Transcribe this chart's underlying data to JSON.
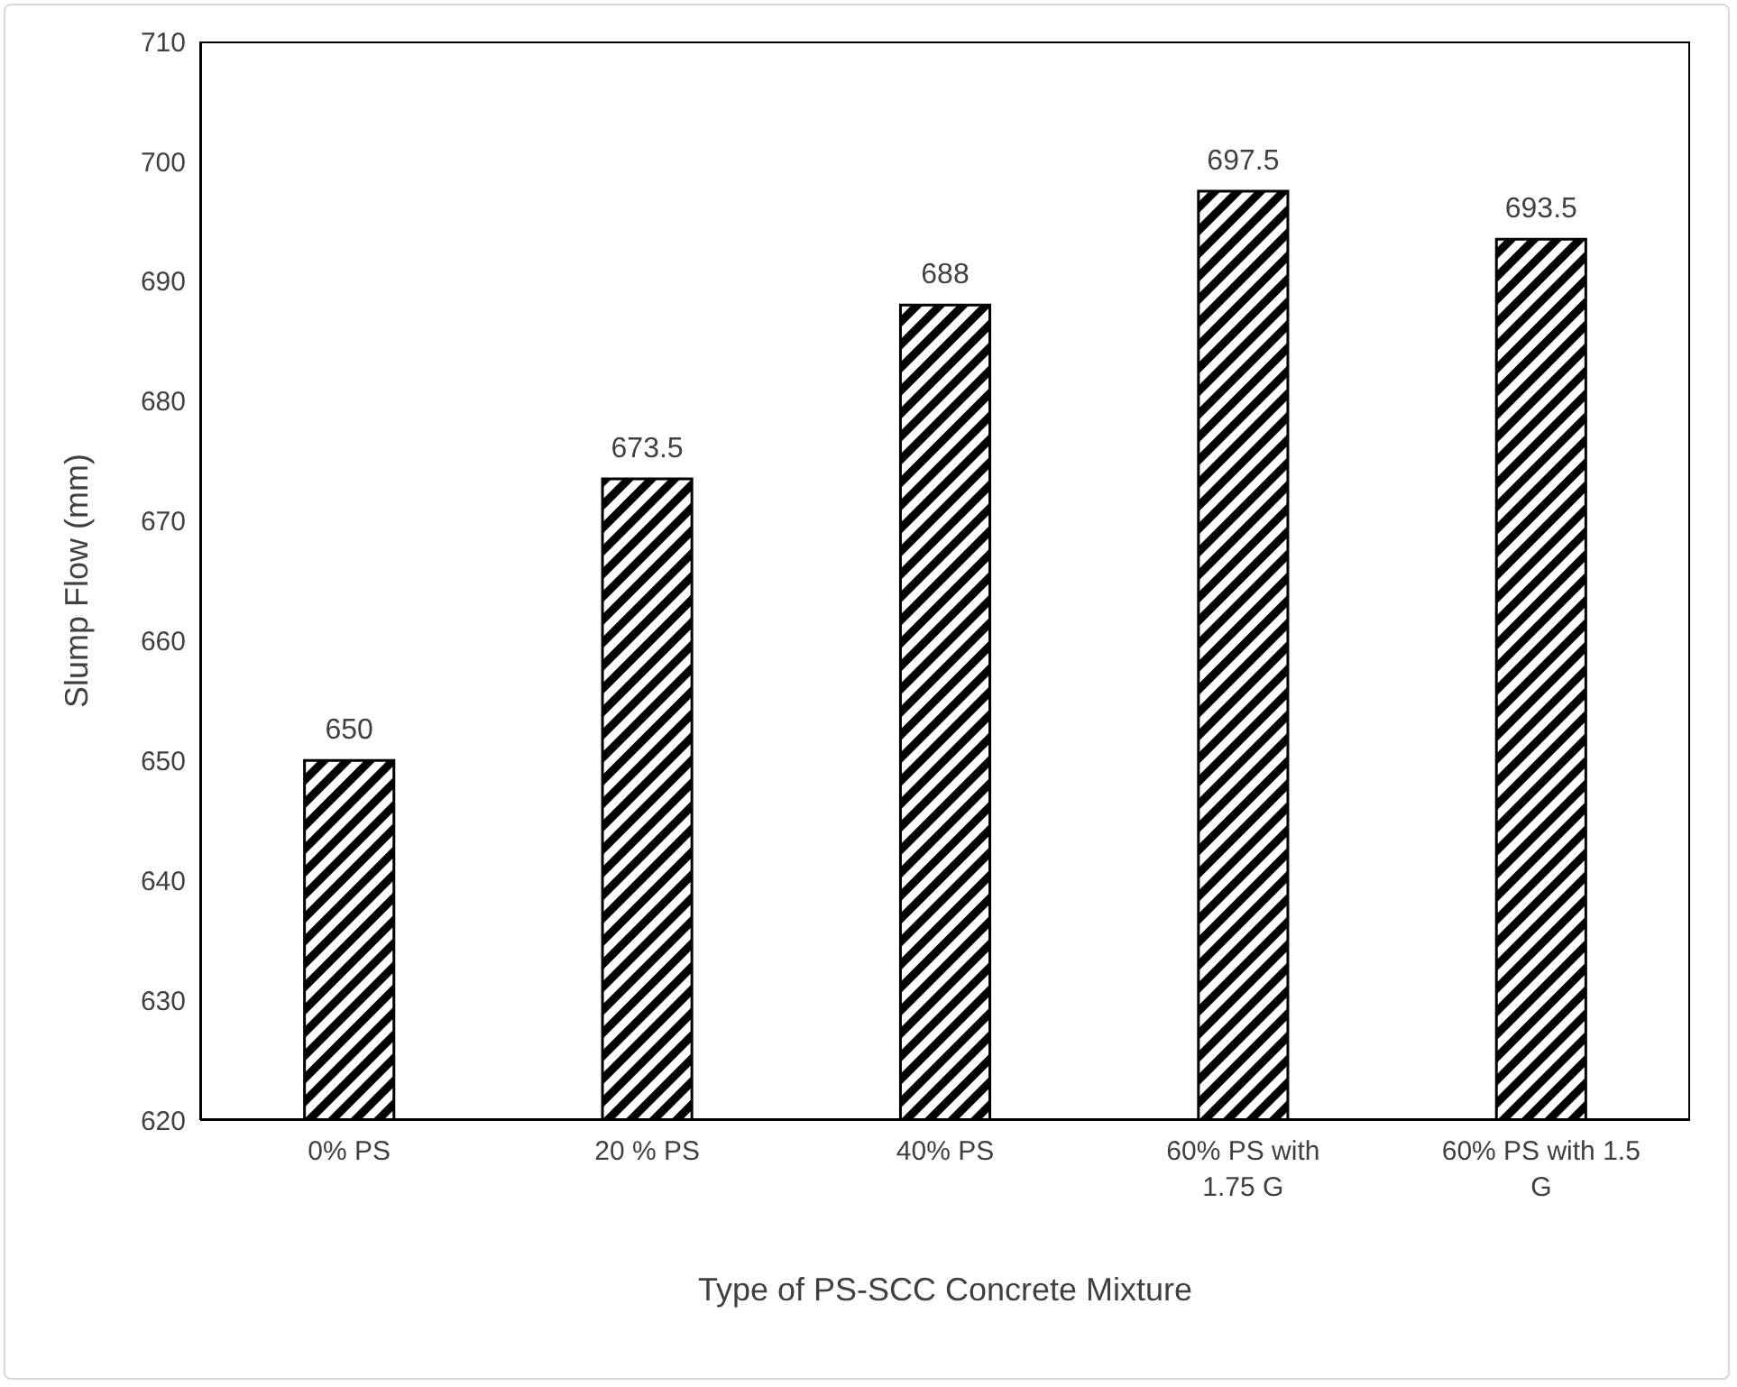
{
  "chart_data": {
    "type": "bar",
    "xlabel": "Type of PS-SCC Concrete Mixture",
    "ylabel": "Slump Flow (mm)",
    "categories": [
      "0% PS",
      "20 % PS",
      "40% PS",
      "60% PS with 1.75 G",
      "60% PS with 1.5 G"
    ],
    "values": [
      650,
      673.5,
      688,
      697.5,
      693.5
    ],
    "color": "#000000",
    "ylim": [
      620,
      710
    ],
    "yticks": [
      620,
      630,
      640,
      650,
      660,
      670,
      680,
      690,
      700,
      710
    ],
    "grid": false,
    "data_labels": true
  }
}
